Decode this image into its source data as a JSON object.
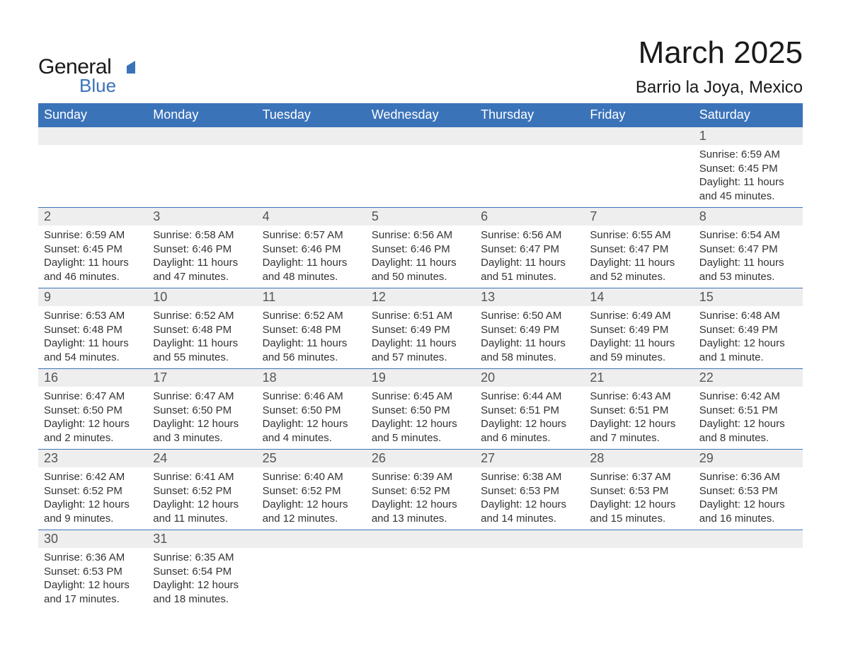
{
  "brand": {
    "word1": "General",
    "word2": "Blue",
    "logo_text_color": "#1a1a1a",
    "logo_accent_color": "#3b73b9"
  },
  "header": {
    "title": "March 2025",
    "location": "Barrio la Joya, Mexico",
    "title_fontsize": 44,
    "subtitle_fontsize": 24,
    "text_color": "#1a1a1a"
  },
  "calendar": {
    "header_bg": "#3b73b9",
    "header_fg": "#ffffff",
    "daynum_bg": "#eeeeee",
    "row_border_color": "#3b73b9",
    "body_text_color": "#333333",
    "daynum_text_color": "#555555",
    "columns": 7,
    "day_headers": [
      "Sunday",
      "Monday",
      "Tuesday",
      "Wednesday",
      "Thursday",
      "Friday",
      "Saturday"
    ],
    "weeks": [
      [
        {
          "day": "",
          "sunrise": "",
          "sunset": "",
          "daylight": ""
        },
        {
          "day": "",
          "sunrise": "",
          "sunset": "",
          "daylight": ""
        },
        {
          "day": "",
          "sunrise": "",
          "sunset": "",
          "daylight": ""
        },
        {
          "day": "",
          "sunrise": "",
          "sunset": "",
          "daylight": ""
        },
        {
          "day": "",
          "sunrise": "",
          "sunset": "",
          "daylight": ""
        },
        {
          "day": "",
          "sunrise": "",
          "sunset": "",
          "daylight": ""
        },
        {
          "day": "1",
          "sunrise": "Sunrise: 6:59 AM",
          "sunset": "Sunset: 6:45 PM",
          "daylight": "Daylight: 11 hours and 45 minutes."
        }
      ],
      [
        {
          "day": "2",
          "sunrise": "Sunrise: 6:59 AM",
          "sunset": "Sunset: 6:45 PM",
          "daylight": "Daylight: 11 hours and 46 minutes."
        },
        {
          "day": "3",
          "sunrise": "Sunrise: 6:58 AM",
          "sunset": "Sunset: 6:46 PM",
          "daylight": "Daylight: 11 hours and 47 minutes."
        },
        {
          "day": "4",
          "sunrise": "Sunrise: 6:57 AM",
          "sunset": "Sunset: 6:46 PM",
          "daylight": "Daylight: 11 hours and 48 minutes."
        },
        {
          "day": "5",
          "sunrise": "Sunrise: 6:56 AM",
          "sunset": "Sunset: 6:46 PM",
          "daylight": "Daylight: 11 hours and 50 minutes."
        },
        {
          "day": "6",
          "sunrise": "Sunrise: 6:56 AM",
          "sunset": "Sunset: 6:47 PM",
          "daylight": "Daylight: 11 hours and 51 minutes."
        },
        {
          "day": "7",
          "sunrise": "Sunrise: 6:55 AM",
          "sunset": "Sunset: 6:47 PM",
          "daylight": "Daylight: 11 hours and 52 minutes."
        },
        {
          "day": "8",
          "sunrise": "Sunrise: 6:54 AM",
          "sunset": "Sunset: 6:47 PM",
          "daylight": "Daylight: 11 hours and 53 minutes."
        }
      ],
      [
        {
          "day": "9",
          "sunrise": "Sunrise: 6:53 AM",
          "sunset": "Sunset: 6:48 PM",
          "daylight": "Daylight: 11 hours and 54 minutes."
        },
        {
          "day": "10",
          "sunrise": "Sunrise: 6:52 AM",
          "sunset": "Sunset: 6:48 PM",
          "daylight": "Daylight: 11 hours and 55 minutes."
        },
        {
          "day": "11",
          "sunrise": "Sunrise: 6:52 AM",
          "sunset": "Sunset: 6:48 PM",
          "daylight": "Daylight: 11 hours and 56 minutes."
        },
        {
          "day": "12",
          "sunrise": "Sunrise: 6:51 AM",
          "sunset": "Sunset: 6:49 PM",
          "daylight": "Daylight: 11 hours and 57 minutes."
        },
        {
          "day": "13",
          "sunrise": "Sunrise: 6:50 AM",
          "sunset": "Sunset: 6:49 PM",
          "daylight": "Daylight: 11 hours and 58 minutes."
        },
        {
          "day": "14",
          "sunrise": "Sunrise: 6:49 AM",
          "sunset": "Sunset: 6:49 PM",
          "daylight": "Daylight: 11 hours and 59 minutes."
        },
        {
          "day": "15",
          "sunrise": "Sunrise: 6:48 AM",
          "sunset": "Sunset: 6:49 PM",
          "daylight": "Daylight: 12 hours and 1 minute."
        }
      ],
      [
        {
          "day": "16",
          "sunrise": "Sunrise: 6:47 AM",
          "sunset": "Sunset: 6:50 PM",
          "daylight": "Daylight: 12 hours and 2 minutes."
        },
        {
          "day": "17",
          "sunrise": "Sunrise: 6:47 AM",
          "sunset": "Sunset: 6:50 PM",
          "daylight": "Daylight: 12 hours and 3 minutes."
        },
        {
          "day": "18",
          "sunrise": "Sunrise: 6:46 AM",
          "sunset": "Sunset: 6:50 PM",
          "daylight": "Daylight: 12 hours and 4 minutes."
        },
        {
          "day": "19",
          "sunrise": "Sunrise: 6:45 AM",
          "sunset": "Sunset: 6:50 PM",
          "daylight": "Daylight: 12 hours and 5 minutes."
        },
        {
          "day": "20",
          "sunrise": "Sunrise: 6:44 AM",
          "sunset": "Sunset: 6:51 PM",
          "daylight": "Daylight: 12 hours and 6 minutes."
        },
        {
          "day": "21",
          "sunrise": "Sunrise: 6:43 AM",
          "sunset": "Sunset: 6:51 PM",
          "daylight": "Daylight: 12 hours and 7 minutes."
        },
        {
          "day": "22",
          "sunrise": "Sunrise: 6:42 AM",
          "sunset": "Sunset: 6:51 PM",
          "daylight": "Daylight: 12 hours and 8 minutes."
        }
      ],
      [
        {
          "day": "23",
          "sunrise": "Sunrise: 6:42 AM",
          "sunset": "Sunset: 6:52 PM",
          "daylight": "Daylight: 12 hours and 9 minutes."
        },
        {
          "day": "24",
          "sunrise": "Sunrise: 6:41 AM",
          "sunset": "Sunset: 6:52 PM",
          "daylight": "Daylight: 12 hours and 11 minutes."
        },
        {
          "day": "25",
          "sunrise": "Sunrise: 6:40 AM",
          "sunset": "Sunset: 6:52 PM",
          "daylight": "Daylight: 12 hours and 12 minutes."
        },
        {
          "day": "26",
          "sunrise": "Sunrise: 6:39 AM",
          "sunset": "Sunset: 6:52 PM",
          "daylight": "Daylight: 12 hours and 13 minutes."
        },
        {
          "day": "27",
          "sunrise": "Sunrise: 6:38 AM",
          "sunset": "Sunset: 6:53 PM",
          "daylight": "Daylight: 12 hours and 14 minutes."
        },
        {
          "day": "28",
          "sunrise": "Sunrise: 6:37 AM",
          "sunset": "Sunset: 6:53 PM",
          "daylight": "Daylight: 12 hours and 15 minutes."
        },
        {
          "day": "29",
          "sunrise": "Sunrise: 6:36 AM",
          "sunset": "Sunset: 6:53 PM",
          "daylight": "Daylight: 12 hours and 16 minutes."
        }
      ],
      [
        {
          "day": "30",
          "sunrise": "Sunrise: 6:36 AM",
          "sunset": "Sunset: 6:53 PM",
          "daylight": "Daylight: 12 hours and 17 minutes."
        },
        {
          "day": "31",
          "sunrise": "Sunrise: 6:35 AM",
          "sunset": "Sunset: 6:54 PM",
          "daylight": "Daylight: 12 hours and 18 minutes."
        },
        {
          "day": "",
          "sunrise": "",
          "sunset": "",
          "daylight": ""
        },
        {
          "day": "",
          "sunrise": "",
          "sunset": "",
          "daylight": ""
        },
        {
          "day": "",
          "sunrise": "",
          "sunset": "",
          "daylight": ""
        },
        {
          "day": "",
          "sunrise": "",
          "sunset": "",
          "daylight": ""
        },
        {
          "day": "",
          "sunrise": "",
          "sunset": "",
          "daylight": ""
        }
      ]
    ]
  }
}
